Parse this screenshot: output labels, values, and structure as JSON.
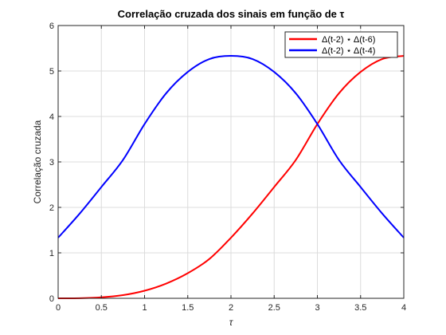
{
  "chart_data": {
    "type": "line",
    "title": "Correlação cruzada dos sinais em função de τ",
    "xlabel": "τ",
    "ylabel": "Correlação cruzada",
    "xlim": [
      0,
      4
    ],
    "ylim": [
      0,
      6
    ],
    "xticks": [
      "0",
      "0.5",
      "1",
      "1.5",
      "2",
      "2.5",
      "3",
      "3.5",
      "4"
    ],
    "yticks": [
      "0",
      "1",
      "2",
      "3",
      "4",
      "5",
      "6"
    ],
    "grid": true,
    "legend_position": "top-right",
    "series": [
      {
        "name": "Δ(t-2) ⋆ Δ(t-6)",
        "color": "#ff0000",
        "x": [
          0,
          0.25,
          0.5,
          0.75,
          1,
          1.25,
          1.5,
          1.75,
          2,
          2.25,
          2.5,
          2.75,
          3,
          3.25,
          3.5,
          3.75,
          4
        ],
        "y": [
          0,
          0.002,
          0.021,
          0.07,
          0.167,
          0.324,
          0.552,
          0.865,
          1.333,
          1.865,
          2.448,
          3.043,
          3.833,
          4.51,
          4.979,
          5.263,
          5.333
        ]
      },
      {
        "name": "Δ(t-2) ⋆ Δ(t-4)",
        "color": "#0000ff",
        "x": [
          0,
          0.25,
          0.5,
          0.75,
          1,
          1.25,
          1.5,
          1.75,
          2,
          2.25,
          2.5,
          2.75,
          3,
          3.25,
          3.5,
          3.75,
          4
        ],
        "y": [
          1.333,
          1.865,
          2.448,
          3.043,
          3.833,
          4.51,
          4.979,
          5.263,
          5.333,
          5.263,
          4.979,
          4.51,
          3.833,
          3.043,
          2.448,
          1.865,
          1.333
        ]
      }
    ]
  }
}
